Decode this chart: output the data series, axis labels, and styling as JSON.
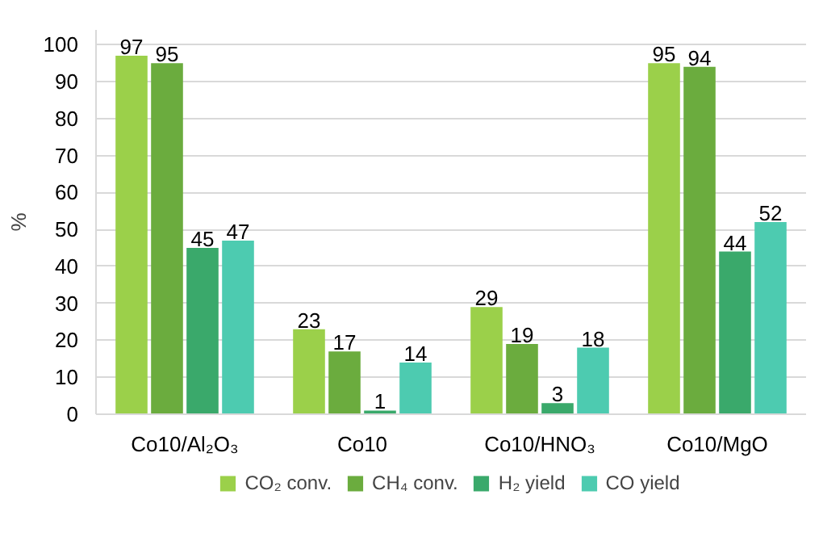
{
  "chart_data": {
    "type": "bar",
    "ylabel": "%",
    "categories": [
      "Co10/Al₂O₃",
      "Co10",
      "Co10/HNO₃",
      "Co10/MgO"
    ],
    "series": [
      {
        "name": "CO₂ conv.",
        "color": "#9bd04a",
        "values": [
          97,
          23,
          29,
          95
        ]
      },
      {
        "name": "CH₄ conv.",
        "color": "#6bac3e",
        "values": [
          95,
          17,
          19,
          94
        ]
      },
      {
        "name": "H₂ yield",
        "color": "#3aa96b",
        "values": [
          45,
          1,
          3,
          44
        ]
      },
      {
        "name": "CO yield",
        "color": "#4dcbb0",
        "values": [
          47,
          14,
          18,
          52
        ]
      }
    ],
    "ylim": [
      0,
      104
    ],
    "yticks": [
      0,
      10,
      20,
      30,
      40,
      50,
      60,
      70,
      80,
      90,
      100
    ],
    "grid": "y",
    "legend": "bottom",
    "data_labels": true
  }
}
